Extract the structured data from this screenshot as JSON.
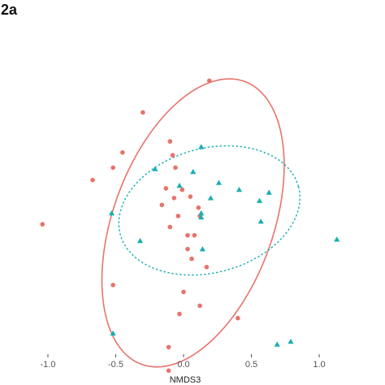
{
  "panel_label": "2a",
  "chart_data": {
    "type": "scatter",
    "title": "",
    "xlabel": "NMDS3",
    "ylabel": "",
    "xlim": [
      -1.25,
      1.35
    ],
    "ylim": [
      -1.25,
      1.35
    ],
    "x_ticks": [
      -1.0,
      -0.5,
      0.0,
      0.5,
      1.0
    ],
    "x_tick_labels": [
      "-1.0",
      "-0.5",
      "0.0",
      "0.5",
      "1.0"
    ],
    "grid": false,
    "legend": "none",
    "series": [
      {
        "marker": "circle",
        "color": "#E8736C",
        "points": [
          [
            0.19,
            0.91
          ],
          [
            -0.3,
            0.68
          ],
          [
            -0.1,
            0.47
          ],
          [
            -0.45,
            0.39
          ],
          [
            -0.08,
            0.37
          ],
          [
            -0.52,
            0.28
          ],
          [
            -0.06,
            0.28
          ],
          [
            -0.67,
            0.19
          ],
          [
            -0.13,
            0.13
          ],
          [
            -0.01,
            0.12
          ],
          [
            -0.07,
            0.06
          ],
          [
            0.05,
            0.07
          ],
          [
            -0.16,
            0.01
          ],
          [
            0.11,
            -0.01
          ],
          [
            -0.04,
            -0.07
          ],
          [
            0.12,
            -0.07
          ],
          [
            -1.04,
            -0.13
          ],
          [
            -0.1,
            -0.15
          ],
          [
            0.03,
            -0.21
          ],
          [
            0.08,
            -0.21
          ],
          [
            0.03,
            -0.31
          ],
          [
            0.06,
            -0.38
          ],
          [
            0.17,
            -0.44
          ],
          [
            -0.52,
            -0.57
          ],
          [
            0.0,
            -0.62
          ],
          [
            0.12,
            -0.72
          ],
          [
            -0.03,
            -0.78
          ],
          [
            0.4,
            -0.81
          ],
          [
            -0.11,
            -1.02
          ],
          [
            -0.11,
            -1.19
          ]
        ]
      },
      {
        "marker": "triangle",
        "color": "#1AAFAF",
        "points": [
          [
            0.13,
            0.43
          ],
          [
            -0.21,
            0.27
          ],
          [
            0.07,
            0.25
          ],
          [
            0.26,
            0.17
          ],
          [
            -0.03,
            0.15
          ],
          [
            0.41,
            0.12
          ],
          [
            0.63,
            0.1
          ],
          [
            0.2,
            0.06
          ],
          [
            0.56,
            0.04
          ],
          [
            -0.53,
            -0.05
          ],
          [
            0.13,
            -0.05
          ],
          [
            0.13,
            -0.08
          ],
          [
            0.57,
            -0.11
          ],
          [
            -0.32,
            -0.25
          ],
          [
            0.14,
            -0.31
          ],
          [
            1.13,
            -0.24
          ],
          [
            -0.52,
            -0.92
          ],
          [
            0.69,
            -1.0
          ],
          [
            0.79,
            -0.98
          ]
        ]
      }
    ],
    "ellipses": [
      {
        "series": 0,
        "style": "solid",
        "cx": 0.07,
        "cy": -0.12,
        "rx": 0.59,
        "ry": 1.09,
        "angle": 20
      },
      {
        "series": 1,
        "style": "dotted",
        "cx": 0.19,
        "cy": -0.03,
        "rx": 0.68,
        "ry": 0.45,
        "angle": -15
      }
    ]
  }
}
